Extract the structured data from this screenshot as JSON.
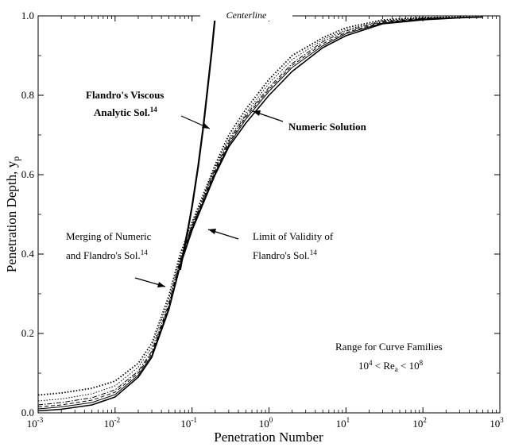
{
  "chart_data": {
    "type": "line",
    "title": "",
    "xlabel": "Penetration Number",
    "ylabel": {
      "text": "Penetration Depth, y",
      "sub": "p"
    },
    "x_scale": "log",
    "xlim": [
      0.001,
      1000
    ],
    "ylim": [
      0,
      1
    ],
    "grid": false,
    "x_ticks": [
      {
        "value": 0.001,
        "base": "10",
        "exp": "-3"
      },
      {
        "value": 0.01,
        "base": "10",
        "exp": "-2"
      },
      {
        "value": 0.1,
        "base": "10",
        "exp": "-1"
      },
      {
        "value": 1,
        "base": "10",
        "exp": "0"
      },
      {
        "value": 10,
        "base": "10",
        "exp": "1"
      },
      {
        "value": 100,
        "base": "10",
        "exp": "2"
      },
      {
        "value": 1000,
        "base": "10",
        "exp": "3"
      }
    ],
    "y_ticks": [
      {
        "value": 0,
        "label": "0.0"
      },
      {
        "value": 0.2,
        "label": "0.2"
      },
      {
        "value": 0.4,
        "label": "0.4"
      },
      {
        "value": 0.6,
        "label": "0.6"
      },
      {
        "value": 0.8,
        "label": "0.8"
      },
      {
        "value": 1.0,
        "label": "1.0"
      }
    ],
    "series": [
      {
        "style": "solid-bold",
        "x": [
          0.001,
          0.002,
          0.005,
          0.01,
          0.02,
          0.03,
          0.05,
          0.07,
          0.1,
          0.2,
          0.3,
          0.5,
          1,
          2,
          5,
          10,
          30,
          100,
          300,
          600
        ],
        "y": [
          0.005,
          0.009,
          0.02,
          0.04,
          0.09,
          0.14,
          0.26,
          0.37,
          0.46,
          0.6,
          0.67,
          0.73,
          0.8,
          0.86,
          0.92,
          0.95,
          0.98,
          0.99,
          0.995,
          0.997
        ]
      },
      {
        "style": "solid",
        "x": [
          0.001,
          0.002,
          0.005,
          0.01,
          0.02,
          0.03,
          0.05,
          0.07,
          0.1,
          0.2,
          0.3,
          0.5,
          1,
          2,
          5,
          10,
          30,
          100,
          300,
          600
        ],
        "y": [
          0.01,
          0.015,
          0.026,
          0.046,
          0.095,
          0.145,
          0.265,
          0.375,
          0.465,
          0.605,
          0.675,
          0.74,
          0.81,
          0.87,
          0.925,
          0.955,
          0.982,
          0.992,
          0.996,
          0.997
        ]
      },
      {
        "style": "dash",
        "x": [
          0.001,
          0.002,
          0.005,
          0.01,
          0.02,
          0.03,
          0.05,
          0.07,
          0.1,
          0.2,
          0.3,
          0.5,
          1,
          2,
          5,
          10,
          30,
          100,
          300,
          600
        ],
        "y": [
          0.015,
          0.02,
          0.032,
          0.052,
          0.1,
          0.15,
          0.27,
          0.38,
          0.47,
          0.61,
          0.68,
          0.745,
          0.815,
          0.875,
          0.93,
          0.958,
          0.984,
          0.993,
          0.996,
          0.997
        ]
      },
      {
        "style": "dashdot",
        "x": [
          0.001,
          0.002,
          0.005,
          0.01,
          0.02,
          0.03,
          0.05,
          0.07,
          0.1,
          0.2,
          0.3,
          0.5,
          1,
          2,
          5,
          10,
          30,
          100,
          300,
          600
        ],
        "y": [
          0.02,
          0.026,
          0.038,
          0.058,
          0.105,
          0.155,
          0.275,
          0.385,
          0.47,
          0.615,
          0.685,
          0.75,
          0.82,
          0.88,
          0.935,
          0.962,
          0.986,
          0.994,
          0.996,
          0.997
        ]
      },
      {
        "style": "dot",
        "x": [
          0.001,
          0.002,
          0.005,
          0.01,
          0.02,
          0.03,
          0.05,
          0.07,
          0.1,
          0.2,
          0.3,
          0.5,
          1,
          2,
          5,
          10,
          30,
          100,
          300,
          600
        ],
        "y": [
          0.03,
          0.035,
          0.048,
          0.068,
          0.115,
          0.165,
          0.285,
          0.39,
          0.475,
          0.62,
          0.69,
          0.755,
          0.83,
          0.89,
          0.94,
          0.965,
          0.988,
          0.995,
          0.997,
          0.997
        ]
      },
      {
        "style": "dot-bold",
        "x": [
          0.001,
          0.002,
          0.005,
          0.01,
          0.02,
          0.03,
          0.05,
          0.07,
          0.1,
          0.2,
          0.3,
          0.5,
          1,
          2,
          5,
          10,
          30,
          100,
          300,
          600
        ],
        "y": [
          0.045,
          0.05,
          0.062,
          0.08,
          0.125,
          0.175,
          0.295,
          0.4,
          0.48,
          0.625,
          0.7,
          0.765,
          0.84,
          0.9,
          0.945,
          0.97,
          0.99,
          0.996,
          0.997,
          0.997
        ]
      },
      {
        "style": "analytic",
        "x": [
          0.07,
          0.08,
          0.09,
          0.1,
          0.12,
          0.14,
          0.16,
          0.18,
          0.2
        ],
        "y": [
          0.36,
          0.42,
          0.47,
          0.52,
          0.62,
          0.72,
          0.82,
          0.91,
          1.0
        ]
      }
    ],
    "annotations": {
      "centerline": "Centerline",
      "flandro_line1": "Flandro's Viscous",
      "flandro_line2": "Analytic Sol.",
      "flandro_ref": "14",
      "numeric": "Numeric Solution",
      "merging_line1": "Merging of Numeric",
      "merging_line2": "and Flandro's Sol.",
      "merging_ref": "14",
      "limit_line1": "Limit of Validity of",
      "limit_line2": "Flandro's Sol.",
      "limit_ref": "14",
      "range_line1": "Range for Curve Families",
      "range_lower": "10",
      "range_lower_exp": "4",
      "range_mid": " < Re",
      "range_mid_sub": "a",
      "range_upper_op": " < 10",
      "range_upper_exp": "8"
    }
  }
}
